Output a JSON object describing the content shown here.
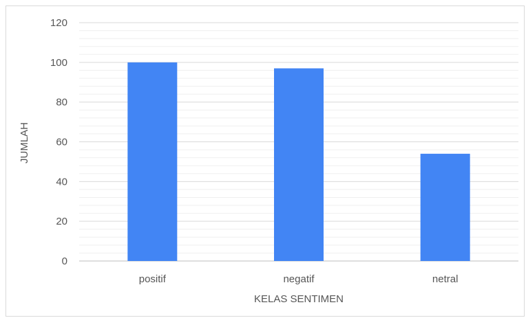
{
  "chart_data": {
    "type": "bar",
    "categories": [
      "positif",
      "negatif",
      "netral"
    ],
    "values": [
      100,
      97,
      54
    ],
    "xlabel": "KELAS SENTIMEN",
    "ylabel": "JUMLAH",
    "ylim": [
      0,
      120
    ],
    "yticks": [
      0,
      20,
      40,
      60,
      80,
      100,
      120
    ],
    "minor_gridlines_per_major": 4,
    "grid": true,
    "legend": "none",
    "bar_color": "#4285f4",
    "gridline_color": "#d9d9d9",
    "minor_gridline_color": "#efefef"
  }
}
